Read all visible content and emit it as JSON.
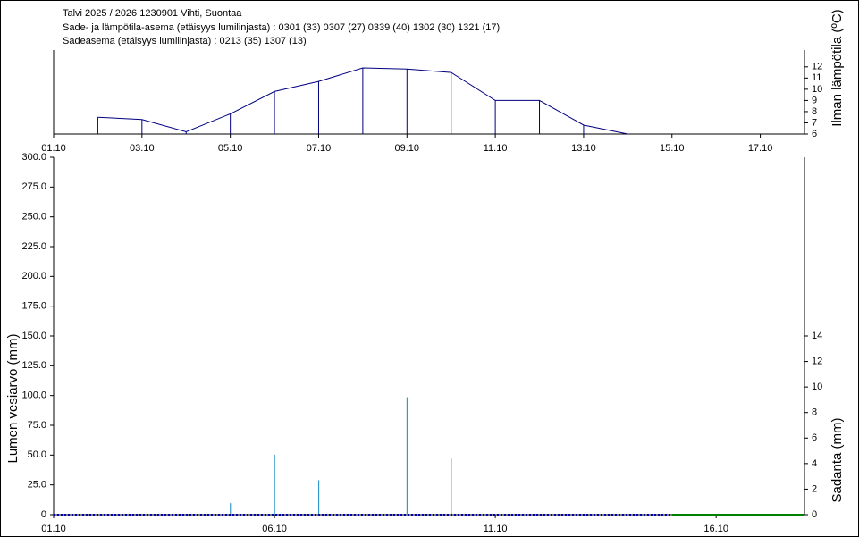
{
  "header": {
    "lines": [
      "Talvi 2025 / 2026 1230901 Vihti, Suontaa",
      "Sade- ja lämpötila-asema (etäisyys lumilinjasta) :  0301 (33) 0307 (27) 0339 (40) 1302 (30) 1321 (17)",
      "Sadeasema (etäisyys lumilinjasta) :  0213 (35) 1307 (13)"
    ]
  },
  "chart_data": [
    {
      "type": "line",
      "ylabel": "Ilman lämpötila (ºC)",
      "xlim": [
        1,
        18
      ],
      "xticks": [
        {
          "value": 1,
          "label": "01.10"
        },
        {
          "value": 3,
          "label": "03.10"
        },
        {
          "value": 5,
          "label": "05.10"
        },
        {
          "value": 7,
          "label": "07.10"
        },
        {
          "value": 9,
          "label": "09.10"
        },
        {
          "value": 11,
          "label": "11.10"
        },
        {
          "value": 13,
          "label": "13.10"
        },
        {
          "value": 15,
          "label": "15.10"
        },
        {
          "value": 17,
          "label": "17.10"
        }
      ],
      "ylim": [
        6,
        13.5
      ],
      "yticks": [
        6,
        7,
        8,
        9,
        10,
        11,
        12
      ],
      "series": [
        {
          "color": "#000080",
          "x": [
            2,
            3,
            4,
            5,
            6,
            7,
            8,
            9,
            10,
            11,
            12,
            13,
            14
          ],
          "values": [
            7.5,
            7.3,
            6.2,
            7.8,
            9.8,
            10.7,
            11.9,
            11.8,
            11.5,
            9.0,
            9.0,
            6.8,
            6.0
          ]
        }
      ]
    },
    {
      "type": "combo",
      "ylabel": "Lumen vesiarvo (mm)",
      "y2label": "Sadanta (mm)",
      "xlim": [
        1,
        18
      ],
      "xticks": [
        {
          "value": 1,
          "label": "01.10"
        },
        {
          "value": 6,
          "label": "06.10"
        },
        {
          "value": 11,
          "label": "11.10"
        },
        {
          "value": 16,
          "label": "16.10"
        }
      ],
      "ylim": [
        0,
        300
      ],
      "yticks": [
        0,
        {
          "value": 25,
          "label": "25.0"
        },
        {
          "value": 50,
          "label": "50.0"
        },
        {
          "value": 75,
          "label": "75.0"
        },
        {
          "value": 100,
          "label": "100.0"
        },
        {
          "value": 125,
          "label": "125.0"
        },
        {
          "value": 150,
          "label": "150.0"
        },
        {
          "value": 175,
          "label": "175.0"
        },
        {
          "value": 200,
          "label": "200.0"
        },
        {
          "value": 225,
          "label": "225.0"
        },
        {
          "value": 250,
          "label": "250.0"
        },
        {
          "value": 275,
          "label": "275.0"
        },
        {
          "value": 300,
          "label": "300.0"
        }
      ],
      "y2lim": [
        0,
        28
      ],
      "y2ticks": [
        0,
        2,
        4,
        6,
        8,
        10,
        12,
        14
      ],
      "series": [
        {
          "type": "bar",
          "axis": "y2",
          "color": "#3399cc",
          "x": [
            5,
            6,
            7,
            9,
            10
          ],
          "values": [
            0.9,
            4.7,
            2.7,
            9.2,
            4.4
          ]
        },
        {
          "type": "line",
          "color": "#0000aa",
          "style": "dotted",
          "x": [
            1,
            2,
            3,
            4,
            5,
            6,
            7,
            8,
            9,
            10,
            11,
            12,
            13,
            14,
            15
          ],
          "values": [
            0,
            0,
            0,
            0,
            0,
            0,
            0,
            0,
            0,
            0,
            0,
            0,
            0,
            0,
            0
          ]
        },
        {
          "type": "line",
          "color": "#008000",
          "style": "solid",
          "x": [
            15,
            16,
            17,
            18
          ],
          "values": [
            0,
            0,
            0,
            0
          ]
        }
      ]
    }
  ]
}
